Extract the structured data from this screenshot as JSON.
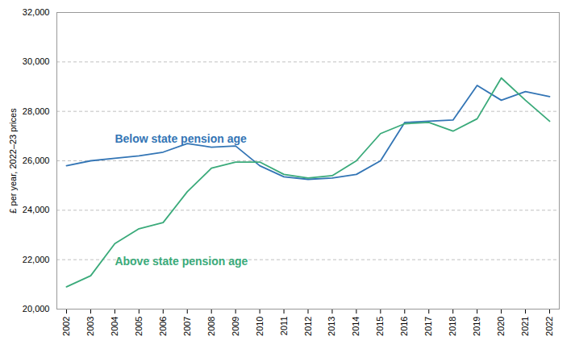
{
  "chart_data": {
    "type": "line",
    "x": [
      2002,
      2003,
      2004,
      2005,
      2006,
      2007,
      2008,
      2009,
      2010,
      2011,
      2012,
      2013,
      2014,
      2015,
      2016,
      2017,
      2018,
      2019,
      2020,
      2021,
      2022
    ],
    "series": [
      {
        "name": "Below state pension age",
        "color": "#3375b5",
        "values": [
          25800,
          26000,
          26100,
          26200,
          26350,
          26700,
          26550,
          26600,
          25800,
          25350,
          25250,
          25300,
          25450,
          26000,
          27550,
          27600,
          27650,
          29050,
          28450,
          28800,
          28600
        ]
      },
      {
        "name": "Above state pension age",
        "color": "#3aaa7a",
        "values": [
          20900,
          21350,
          22650,
          23250,
          23500,
          24750,
          25700,
          25950,
          25950,
          25450,
          25300,
          25400,
          26000,
          27100,
          27500,
          27550,
          27200,
          27700,
          29350,
          28450,
          27600
        ]
      }
    ],
    "ylabel": "£ per year, 2022–23 prices",
    "xlim": [
      2001.6,
      2022.4
    ],
    "xticks": [
      2002,
      2003,
      2004,
      2005,
      2006,
      2007,
      2008,
      2009,
      2010,
      2011,
      2012,
      2013,
      2014,
      2015,
      2016,
      2017,
      2018,
      2019,
      2020,
      2021,
      2022
    ],
    "ylim": [
      20000,
      32000
    ],
    "yticks": [
      {
        "value": 20000,
        "label": "20,000"
      },
      {
        "value": 22000,
        "label": "22,000"
      },
      {
        "value": 24000,
        "label": "24,000"
      },
      {
        "value": 26000,
        "label": "26,000"
      },
      {
        "value": 28000,
        "label": "28,000"
      },
      {
        "value": 30000,
        "label": "30,000"
      },
      {
        "value": 32000,
        "label": "32,000"
      }
    ],
    "grid": true
  }
}
